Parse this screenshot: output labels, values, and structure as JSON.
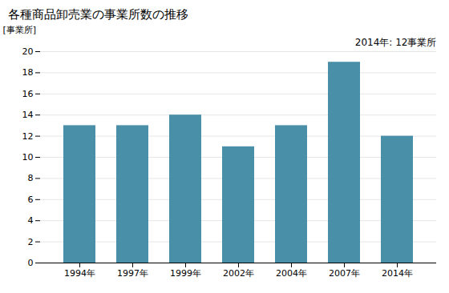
{
  "chart_data": {
    "type": "bar",
    "title": "各種商品卸売業の事業所数の推移",
    "ylabel": "[事業所]",
    "annotation": "2014年: 12事業所",
    "categories": [
      "1994年",
      "1997年",
      "1999年",
      "2002年",
      "2004年",
      "2007年",
      "2014年"
    ],
    "values": [
      13,
      13,
      14,
      11,
      13,
      19,
      12
    ],
    "color": "#4a8fa8",
    "ylim": [
      0,
      20
    ],
    "yticks": [
      0,
      2,
      4,
      6,
      8,
      10,
      12,
      14,
      16,
      18,
      20
    ],
    "grid": true
  }
}
